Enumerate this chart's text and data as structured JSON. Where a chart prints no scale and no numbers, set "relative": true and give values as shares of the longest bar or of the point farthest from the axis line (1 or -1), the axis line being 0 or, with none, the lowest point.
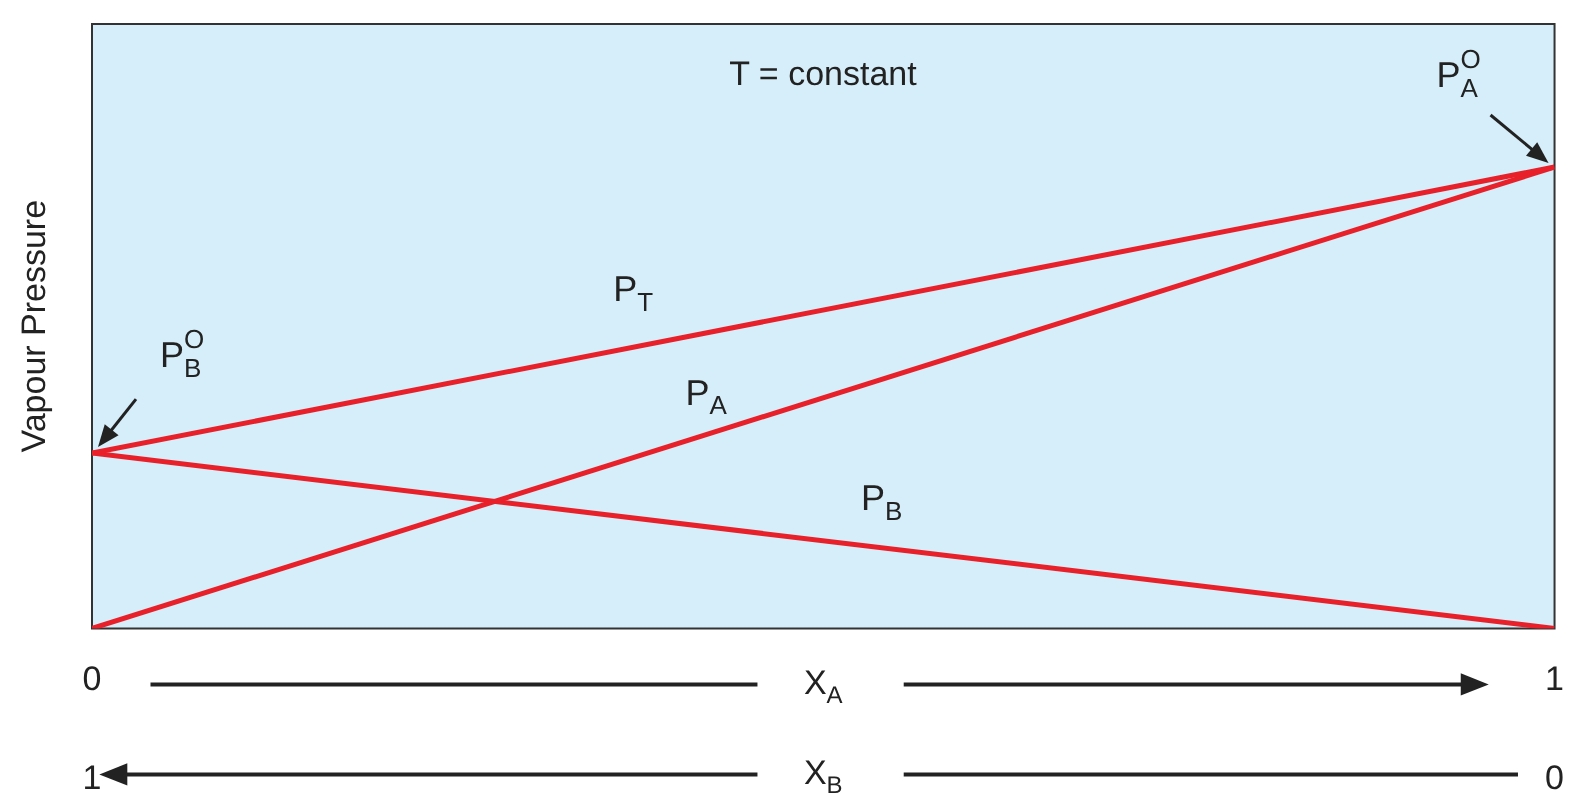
{
  "chart_data": {
    "type": "line",
    "relative": true,
    "ylabel": "Vapour Pressure",
    "xlabel": "X$_{A}$",
    "x2label": "X$_{B}$",
    "xlim": [
      0,
      1
    ],
    "xticks": [
      0,
      1
    ],
    "x2lim": [
      1,
      0
    ],
    "x2ticks": [
      1,
      0
    ],
    "x": [
      0,
      1
    ],
    "grid": false,
    "marker": "none",
    "line_style": "solid",
    "annotations": [
      "T = constant",
      {
        "text": "P$_{B}$$^{O}$",
        "x": 0,
        "y": 0.38
      },
      {
        "text": "P$_{A}$$^{O}$",
        "x": 1,
        "y": 1
      }
    ],
    "series": [
      {
        "name": "P$_{T}$",
        "color": "#e8202a",
        "values": [
          0.38,
          1
        ]
      },
      {
        "name": "P$_{A}$",
        "color": "#e8202a",
        "values": [
          0,
          1
        ]
      },
      {
        "name": "P$_{B}$",
        "color": "#e8202a",
        "values": [
          0.38,
          0
        ]
      }
    ]
  }
}
